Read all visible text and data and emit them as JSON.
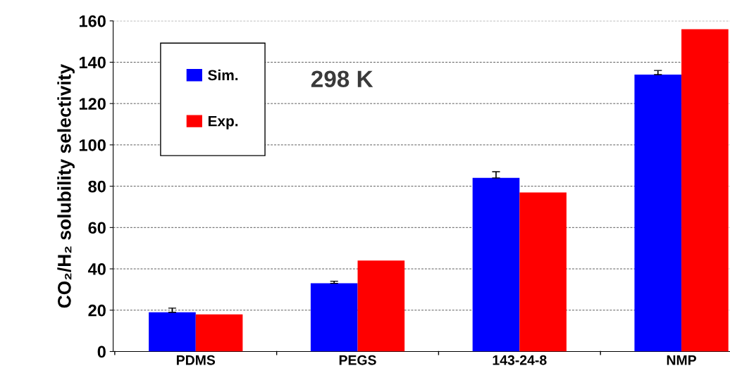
{
  "chart_data": {
    "type": "bar",
    "ylabel": "CO₂/H₂ solubility selectivity",
    "categories": [
      "PDMS",
      "PEGS",
      "143-24-8",
      "NMP"
    ],
    "series": [
      {
        "name": "Sim.",
        "color": "#0000ff",
        "values": [
          19,
          33,
          84,
          134
        ],
        "errors": [
          [
            19,
            21
          ],
          [
            33,
            34
          ],
          [
            84,
            87
          ],
          [
            134,
            136
          ]
        ]
      },
      {
        "name": "Exp.",
        "color": "#ff0000",
        "values": [
          18,
          44,
          77,
          156
        ]
      }
    ],
    "ylim": [
      0,
      160
    ],
    "yticks": [
      0,
      20,
      40,
      60,
      80,
      100,
      120,
      140,
      160
    ],
    "grid": "y",
    "legend": "top left",
    "annotations": [
      "298 K"
    ]
  }
}
